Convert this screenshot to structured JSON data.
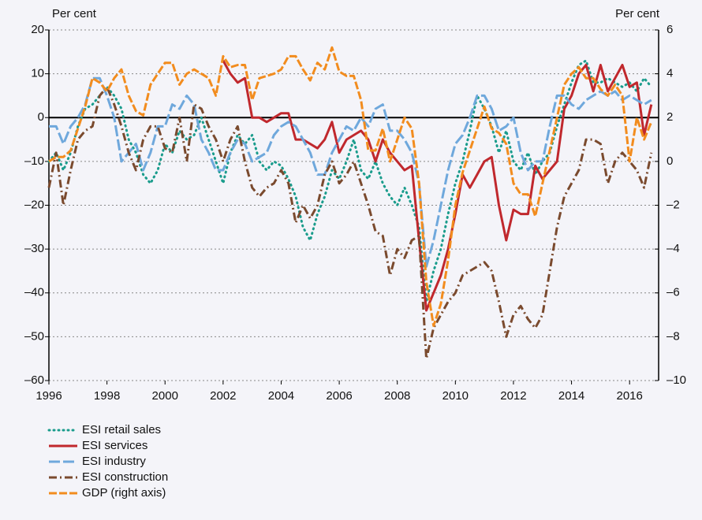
{
  "chart_data": {
    "type": "line",
    "y_label": "Per cent",
    "y2_label": "Per cent",
    "x": [
      1996,
      1996.25,
      1996.5,
      1996.75,
      1997,
      1997.25,
      1997.5,
      1997.75,
      1998,
      1998.25,
      1998.5,
      1998.75,
      1999,
      1999.25,
      1999.5,
      1999.75,
      2000,
      2000.25,
      2000.5,
      2000.75,
      2001,
      2001.25,
      2001.5,
      2001.75,
      2002,
      2002.25,
      2002.5,
      2002.75,
      2003,
      2003.25,
      2003.5,
      2003.75,
      2004,
      2004.25,
      2004.5,
      2004.75,
      2005,
      2005.25,
      2005.5,
      2005.75,
      2006,
      2006.25,
      2006.5,
      2006.75,
      2007,
      2007.25,
      2007.5,
      2007.75,
      2008,
      2008.25,
      2008.5,
      2008.75,
      2009,
      2009.25,
      2009.5,
      2009.75,
      2010,
      2010.25,
      2010.5,
      2010.75,
      2011,
      2011.25,
      2011.5,
      2011.75,
      2012,
      2012.25,
      2012.5,
      2012.75,
      2013,
      2013.25,
      2013.5,
      2013.75,
      2014,
      2014.25,
      2014.5,
      2014.75,
      2015,
      2015.25,
      2015.5,
      2015.75,
      2016,
      2016.25,
      2016.5,
      2016.75
    ],
    "xlim": [
      1996,
      2017
    ],
    "xticks": [
      1996,
      1998,
      2000,
      2002,
      2004,
      2006,
      2008,
      2010,
      2012,
      2014,
      2016
    ],
    "ylim": [
      -60,
      20
    ],
    "yticks": [
      -60,
      -50,
      -40,
      -30,
      -20,
      -10,
      0,
      10,
      20
    ],
    "y2lim": [
      -10,
      6
    ],
    "y2ticks": [
      -10,
      -8,
      -6,
      -4,
      -2,
      0,
      2,
      4,
      6
    ],
    "grid": true,
    "series": [
      {
        "name": "ESI retail sales",
        "color": "#1a9c8c",
        "dash": "1,5",
        "values": [
          -10,
          -8,
          -12,
          -8,
          -2,
          2,
          3,
          5,
          7,
          5,
          2,
          -5,
          -8,
          -13,
          -15,
          -12,
          -6,
          -8,
          -3,
          -5,
          -4,
          0,
          -5,
          -10,
          -15,
          -8,
          -4,
          -6,
          -4,
          -10,
          -12,
          -10,
          -11,
          -14,
          -18,
          -25,
          -28,
          -22,
          -18,
          -12,
          -14,
          -10,
          -5,
          -12,
          -14,
          -10,
          -15,
          -18,
          -20,
          -16,
          -20,
          -25,
          -42,
          -35,
          -30,
          -22,
          -15,
          -10,
          -3,
          5,
          2,
          -2,
          -8,
          -3,
          -10,
          -12,
          -8,
          -13,
          -10,
          -8,
          -2,
          3,
          8,
          12,
          13,
          8,
          8,
          9,
          8,
          7,
          8,
          6,
          9,
          7
        ]
      },
      {
        "name": "ESI services",
        "color": "#c0282d",
        "dash": "none",
        "values": [
          null,
          null,
          null,
          null,
          null,
          null,
          null,
          null,
          null,
          null,
          null,
          null,
          null,
          null,
          null,
          null,
          null,
          null,
          null,
          null,
          null,
          null,
          null,
          null,
          13,
          10,
          8,
          9,
          0,
          0,
          -1,
          0,
          1,
          1,
          -5,
          -5,
          -6,
          -7,
          -5,
          -1,
          -8,
          -5,
          -4,
          -3,
          -5,
          -10,
          -5,
          -8,
          -10,
          -12,
          -11,
          -28,
          -44,
          -40,
          -36,
          -30,
          -22,
          -13,
          -16,
          -13,
          -10,
          -9,
          -20,
          -28,
          -21,
          -22,
          -22,
          -11,
          -14,
          -12,
          -10,
          2,
          5,
          10,
          12,
          6,
          12,
          6,
          9,
          12,
          7,
          8,
          -4,
          3
        ]
      },
      {
        "name": "ESI industry",
        "color": "#6fa8dc",
        "dash": "14,4",
        "values": [
          -2,
          -2,
          -6,
          -2,
          0,
          3,
          9,
          9,
          5,
          0,
          -10,
          -8,
          -6,
          -12,
          -8,
          -2,
          -2,
          3,
          2,
          5,
          3,
          -5,
          -8,
          -12,
          -12,
          -8,
          -5,
          -6,
          -10,
          -9,
          -8,
          -4,
          -2,
          -1,
          -2,
          -5,
          -8,
          -13,
          -13,
          -8,
          -5,
          -2,
          -3,
          0,
          -2,
          2,
          3,
          -3,
          -3,
          -5,
          -8,
          -15,
          -34,
          -28,
          -20,
          -12,
          -6,
          -4,
          0,
          5,
          5,
          2,
          -3,
          -2,
          0,
          -8,
          -12,
          -10,
          -10,
          -2,
          5,
          5,
          3,
          2,
          4,
          5,
          6,
          5,
          6,
          4,
          5,
          4,
          3,
          4
        ]
      },
      {
        "name": "ESI construction",
        "color": "#7a4a2e",
        "dash": "10,4,2,4",
        "values": [
          -16,
          -8,
          -20,
          -12,
          -5,
          -3,
          -2,
          5,
          7,
          3,
          -2,
          -8,
          -12,
          -5,
          -2,
          -2,
          -7,
          -8,
          0,
          -10,
          3,
          2,
          -2,
          -5,
          -10,
          -5,
          -2,
          -10,
          -16,
          -18,
          -16,
          -15,
          -12,
          -15,
          -24,
          -20,
          -23,
          -20,
          -13,
          -10,
          -15,
          -13,
          -10,
          -15,
          -20,
          -26,
          -27,
          -36,
          -30,
          -32,
          -28,
          -27,
          -55,
          -48,
          -45,
          -42,
          -40,
          -36,
          -35,
          -34,
          -33,
          -35,
          -42,
          -50,
          -45,
          -43,
          -46,
          -48,
          -45,
          -35,
          -25,
          -18,
          -15,
          -12,
          -5,
          -5,
          -6,
          -15,
          -10,
          -8,
          -10,
          -12,
          -16,
          -8
        ]
      },
      {
        "name": "GDP (right axis)",
        "color": "#f28c1e",
        "dash": "10,3",
        "axis": "y2",
        "values": [
          0,
          0.2,
          0.2,
          0.5,
          1.5,
          2.5,
          3.8,
          3.6,
          3.2,
          3.8,
          4.2,
          3,
          2.3,
          2.1,
          3.5,
          4,
          4.5,
          4.5,
          3.5,
          4,
          4.2,
          4,
          3.8,
          3,
          4.8,
          4.3,
          4.4,
          4.4,
          2.8,
          3.8,
          3.9,
          4,
          4.2,
          4.8,
          4.8,
          4.2,
          3.7,
          4.5,
          4.2,
          5.2,
          4.1,
          3.9,
          3.9,
          2.8,
          0.5,
          0.5,
          1.5,
          0,
          1,
          2,
          1.5,
          -1,
          -5.5,
          -7.5,
          -6.5,
          -4.5,
          -2,
          -0.5,
          0.5,
          1.5,
          2.5,
          1.5,
          1.3,
          0.8,
          -1,
          -1.5,
          -1.5,
          -2.5,
          -1,
          0.5,
          2,
          3.5,
          4,
          4.3,
          3.8,
          3.8,
          3.3,
          3,
          3.5,
          3,
          0,
          2,
          1,
          1.8
        ]
      }
    ]
  }
}
